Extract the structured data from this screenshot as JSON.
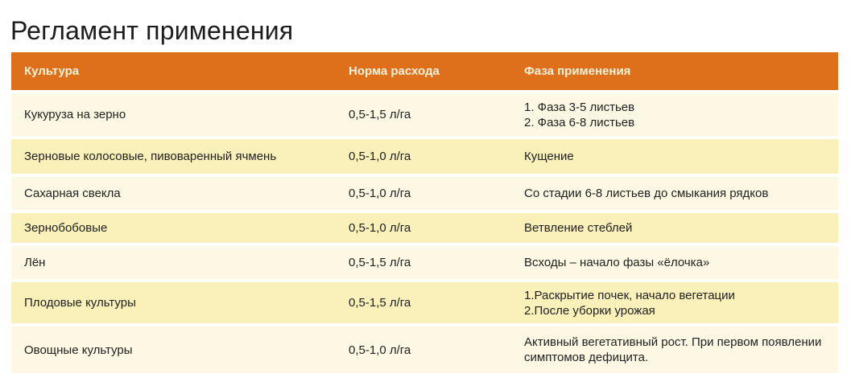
{
  "page": {
    "title": "Регламент применения"
  },
  "colors": {
    "header_bg": "#de701b",
    "header_text": "#fbf2dc",
    "row_light_bg": "#fdf8e4",
    "row_dark_bg": "#faf0b9",
    "body_text": "#212121"
  },
  "table": {
    "columns": [
      "Культура",
      "Норма расхода",
      "Фаза применения"
    ],
    "rows": [
      {
        "crop": "Кукуруза на зерно",
        "rate": "0,5-1,5 л/га",
        "phase": [
          "1. Фаза 3-5 листьев",
          "2. Фаза 6-8 листьев"
        ]
      },
      {
        "crop": "Зерновые колосовые, пивоваренный ячмень",
        "rate": "0,5-1,0 л/га",
        "phase": [
          "Кущение"
        ]
      },
      {
        "crop": "Сахарная свекла",
        "rate": "0,5-1,0 л/га",
        "phase": [
          "Со стадии 6-8 листьев до смыкания рядков"
        ]
      },
      {
        "crop": "Зернобобовые",
        "rate": "0,5-1,0 л/га",
        "phase": [
          "Ветвление стеблей"
        ]
      },
      {
        "crop": "Лён",
        "rate": "0,5-1,5 л/га",
        "phase": [
          "Всходы – начало фазы «ёлочка»"
        ]
      },
      {
        "crop": "Плодовые культуры",
        "rate": "0,5-1,5 л/га",
        "phase": [
          "1.Раскрытие почек, начало вегетации",
          "2.После уборки урожая"
        ]
      },
      {
        "crop": "Овощные культуры",
        "rate": "0,5-1,0 л/га",
        "phase": [
          "Активный вегетативный рост. При первом появлении симптомов дефицита."
        ]
      }
    ]
  }
}
